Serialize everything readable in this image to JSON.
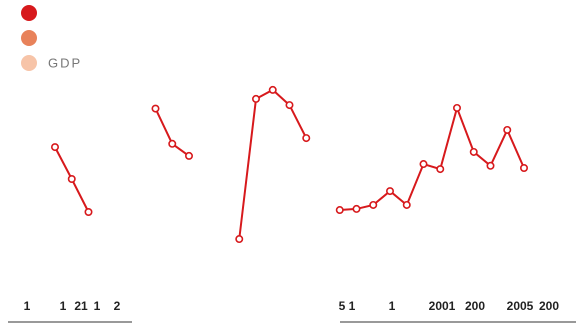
{
  "chart_data": {
    "type": "line",
    "legend": [
      {
        "color": "#d7191c"
      },
      {
        "color": "#e8825a"
      },
      {
        "color": "#f7c4a8",
        "label": "GDP"
      }
    ],
    "series": [
      {
        "color": "#d7191c",
        "values": [
          69.5,
          55,
          40,
          null,
          null,
          null,
          87,
          71,
          65.5,
          null,
          null,
          27.7,
          91.4,
          95.5,
          88.6,
          73.6,
          null,
          40.9,
          41.4,
          43.2,
          49.5,
          43.2,
          61.8,
          59.5,
          87.3,
          67.3,
          61,
          77.3,
          60
        ]
      }
    ],
    "ylim": [
      0,
      100
    ],
    "x_labels": [
      "1",
      "1",
      "21",
      "1",
      "2",
      "5 1",
      "1",
      "2001",
      "200",
      "2005",
      "200"
    ]
  }
}
